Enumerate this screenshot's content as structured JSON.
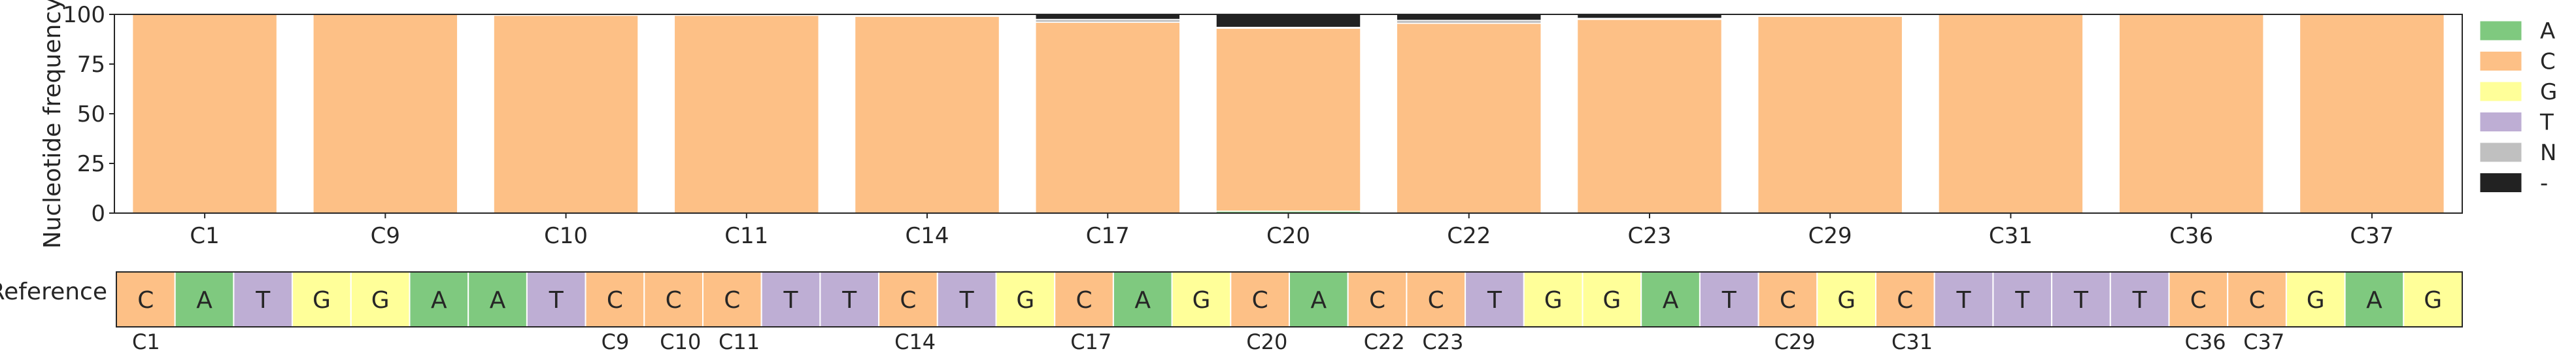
{
  "chart_data": [
    {
      "type": "bar",
      "stacked": true,
      "ylabel": "Nucleotide frequency",
      "xlabel": "",
      "ylim": [
        0,
        100
      ],
      "yticks": [
        0,
        25,
        50,
        75,
        100
      ],
      "grid": false,
      "legend_placement": "right",
      "categories": [
        "C1",
        "C9",
        "C10",
        "C11",
        "C14",
        "C17",
        "C20",
        "C22",
        "C23",
        "C29",
        "C31",
        "C36",
        "C37"
      ],
      "series": [
        {
          "name": "A",
          "color": "#7fc97f",
          "values": [
            0,
            0,
            0,
            0,
            0,
            0,
            1,
            0,
            0,
            0,
            0,
            0,
            0
          ]
        },
        {
          "name": "C",
          "color": "#fdc086",
          "values": [
            100,
            100,
            99.5,
            99.5,
            99,
            96,
            92,
            95.5,
            97.5,
            99,
            100,
            100,
            100
          ]
        },
        {
          "name": "G",
          "color": "#ffff99",
          "values": [
            0,
            0,
            0,
            0,
            0,
            0,
            0,
            0,
            0,
            0,
            0,
            0,
            0
          ]
        },
        {
          "name": "T",
          "color": "#beaed4",
          "values": [
            0,
            0,
            0,
            0,
            0,
            0,
            0,
            0,
            0,
            0,
            0,
            0,
            0
          ]
        },
        {
          "name": "N",
          "color": "#c0c0c0",
          "values": [
            0,
            0,
            0,
            0,
            0,
            1.5,
            0.5,
            1.5,
            0.5,
            0,
            0,
            0,
            0
          ]
        },
        {
          "name": "-",
          "color": "#222222",
          "values": [
            0,
            0,
            0,
            0,
            0,
            2.5,
            6.5,
            3,
            2,
            0,
            0,
            0,
            0
          ]
        }
      ]
    },
    {
      "type": "table",
      "row_label": "Reference",
      "sequence": [
        "C",
        "A",
        "T",
        "G",
        "G",
        "A",
        "A",
        "T",
        "C",
        "C",
        "C",
        "T",
        "T",
        "C",
        "T",
        "G",
        "C",
        "A",
        "G",
        "C",
        "A",
        "C",
        "C",
        "T",
        "G",
        "G",
        "A",
        "T",
        "C",
        "G",
        "C",
        "T",
        "T",
        "T",
        "T",
        "C",
        "C",
        "G",
        "A",
        "G"
      ],
      "marked_positions": [
        {
          "index": 0,
          "label": "C1"
        },
        {
          "index": 8,
          "label": "C9"
        },
        {
          "index": 9,
          "label": "C10"
        },
        {
          "index": 10,
          "label": "C11"
        },
        {
          "index": 13,
          "label": "C14"
        },
        {
          "index": 16,
          "label": "C17"
        },
        {
          "index": 19,
          "label": "C20"
        },
        {
          "index": 21,
          "label": "C22"
        },
        {
          "index": 22,
          "label": "C23"
        },
        {
          "index": 28,
          "label": "C29"
        },
        {
          "index": 30,
          "label": "C31"
        },
        {
          "index": 35,
          "label": "C36"
        },
        {
          "index": 36,
          "label": "C37"
        }
      ],
      "base_colors": {
        "A": "#7fc97f",
        "C": "#fdc086",
        "G": "#ffff99",
        "T": "#beaed4"
      }
    }
  ]
}
